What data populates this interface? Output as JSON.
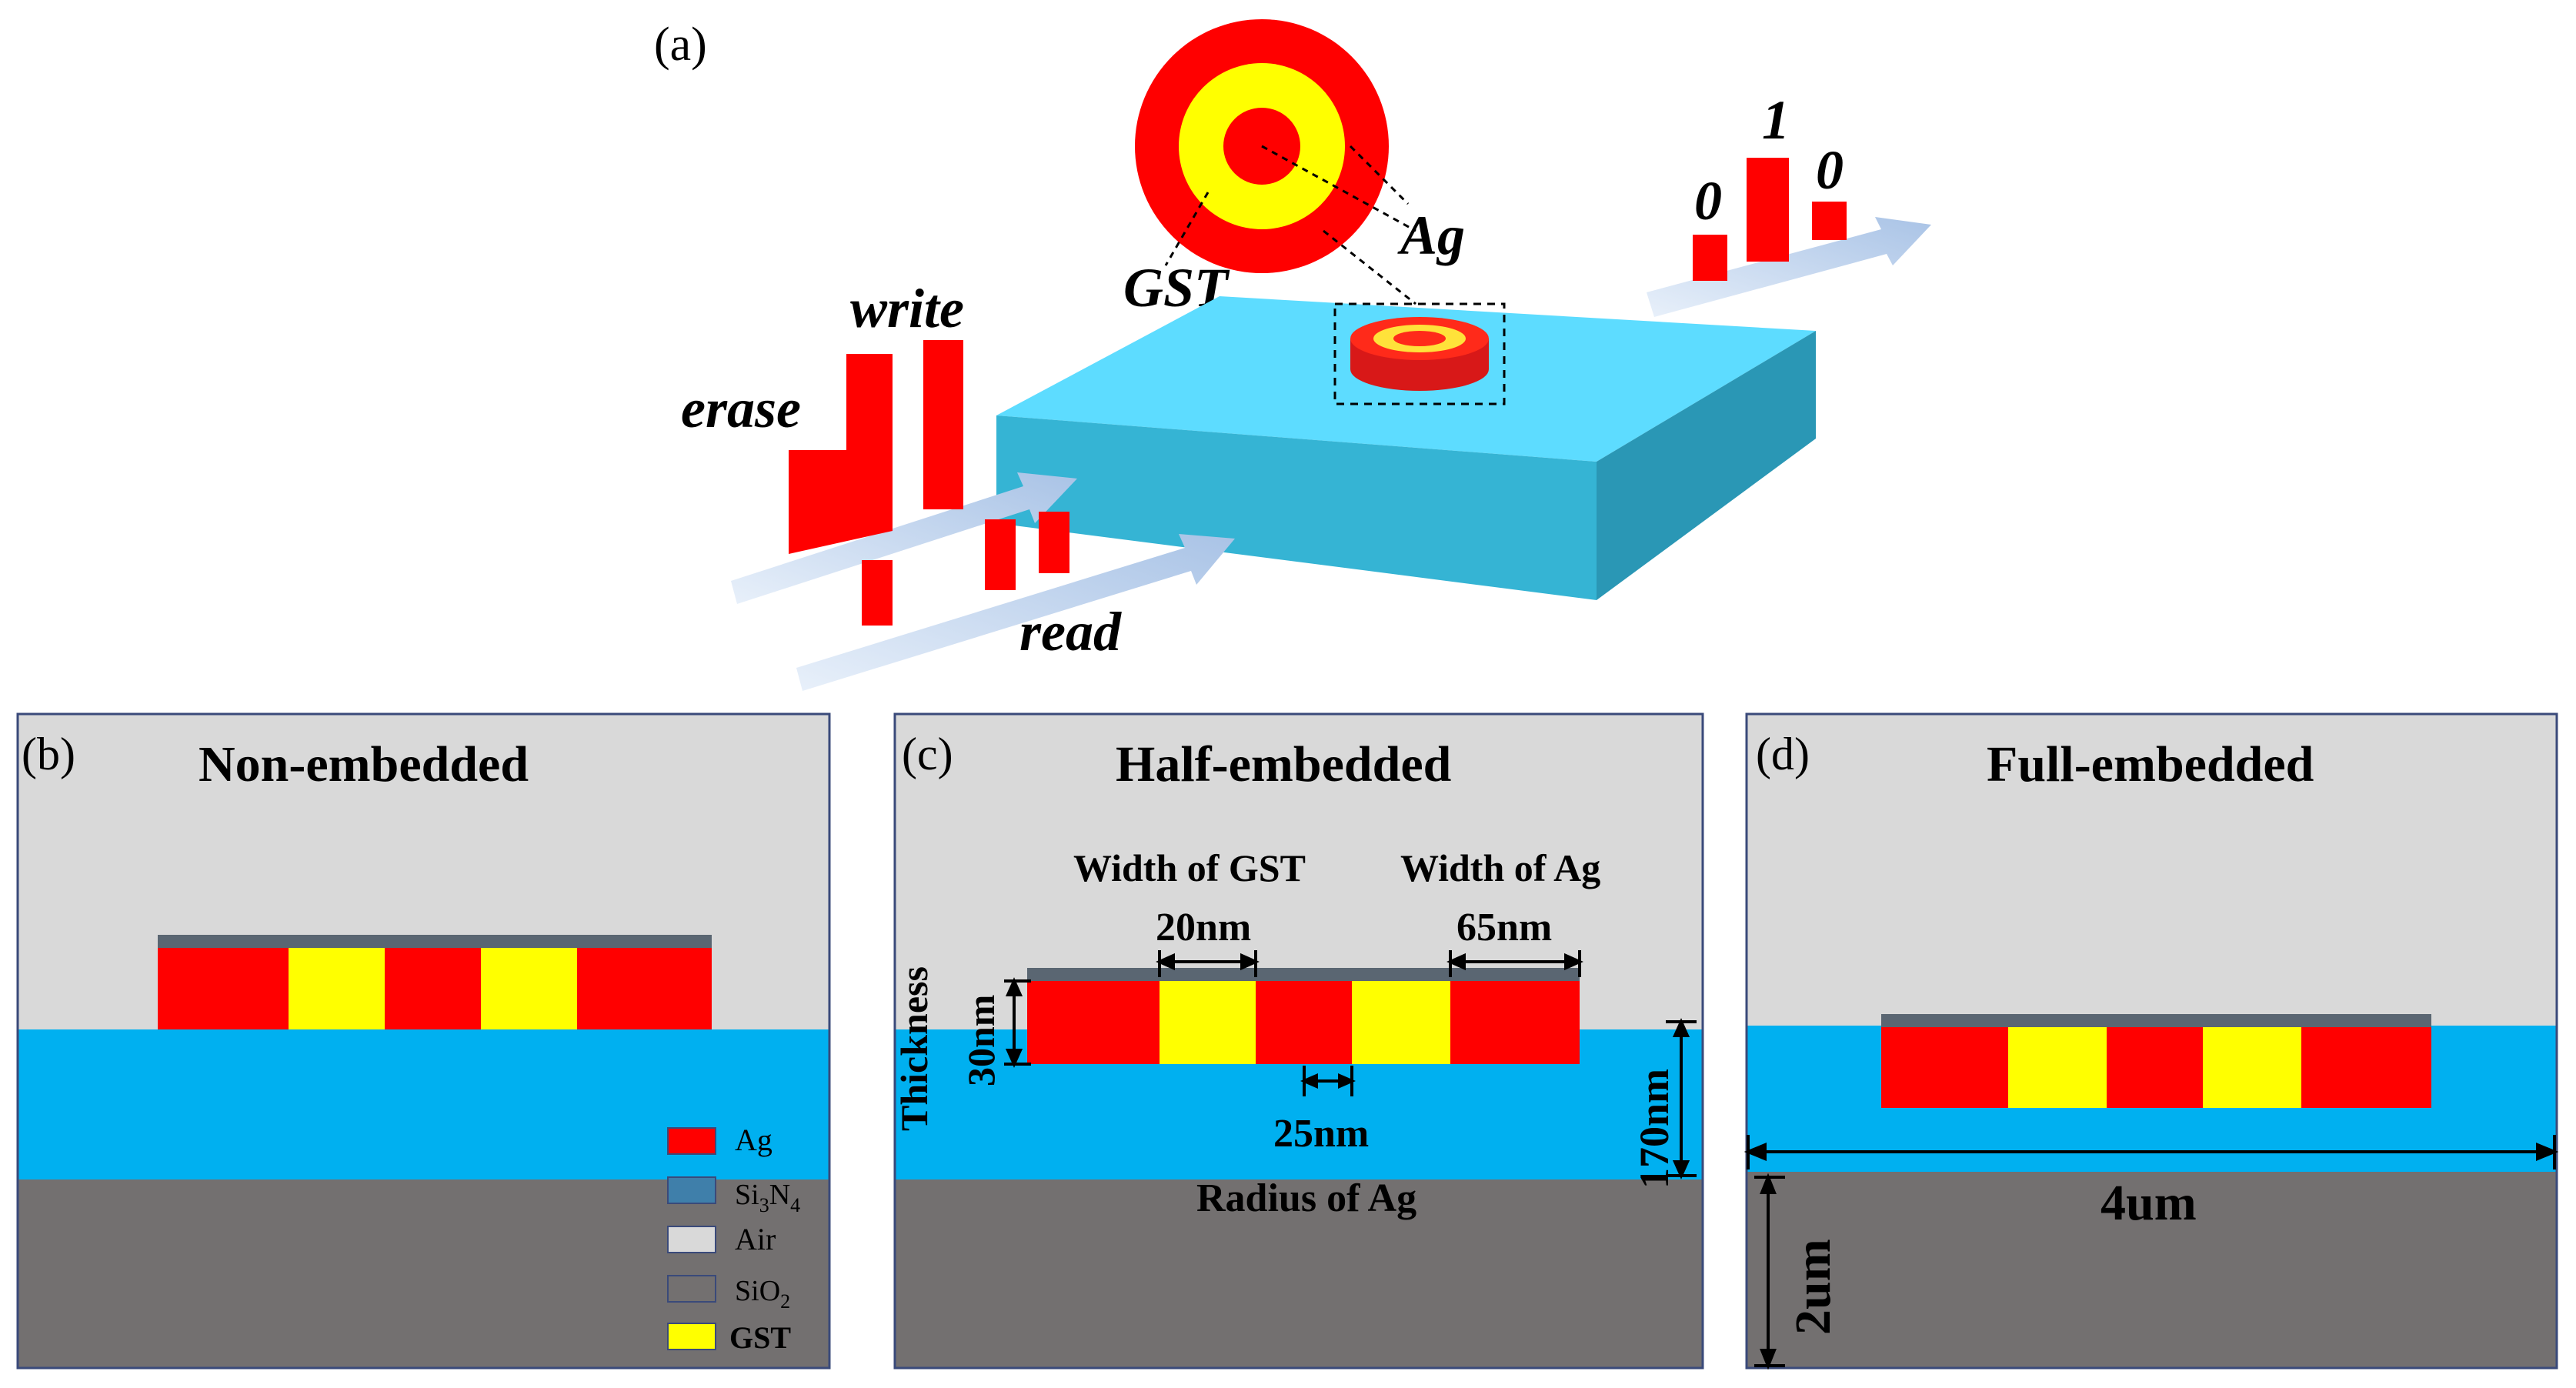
{
  "panel_a": {
    "tag": "(a)",
    "labels": {
      "erase": "erase",
      "write": "write",
      "read": "read",
      "gst": "GST",
      "ag": "Ag",
      "bit0_left": "0",
      "bit1": "1",
      "bit0_right": "0"
    }
  },
  "panel_b": {
    "tag": "(b)",
    "title": "Non-embedded"
  },
  "panel_c": {
    "tag": "(c)",
    "title": "Half-embedded",
    "width_gst_label": "Width of GST",
    "width_ag_label": "Width of Ag",
    "width_gst_value": "20nm",
    "width_ag_value": "65nm",
    "thickness_label": "Thickness",
    "thickness_value": "30nm",
    "radius_value": "25nm",
    "radius_label": "Radius of Ag",
    "height_value": "170nm"
  },
  "panel_d": {
    "tag": "(d)",
    "title": "Full-embedded",
    "width_value": "4um",
    "height_value": "2um"
  },
  "legend": {
    "ag": "Ag",
    "si3n4": {
      "base": "Si",
      "sub1": "3",
      "mid": "N",
      "sub2": "4"
    },
    "air": "Air",
    "sio2": {
      "base": "SiO",
      "sub": "2"
    },
    "gst": "GST"
  },
  "colors": {
    "ag": "#ff0000",
    "gst": "#ffff00",
    "air": "#d9d9d9",
    "si3n4": "#00b0f0",
    "sio2": "#737070",
    "cap": "#5a6672",
    "wave_top": "#5ddcff",
    "wave_side": "#2fa8c8",
    "arrow": "#c4d6ee",
    "frame": "#3a4a7a"
  }
}
